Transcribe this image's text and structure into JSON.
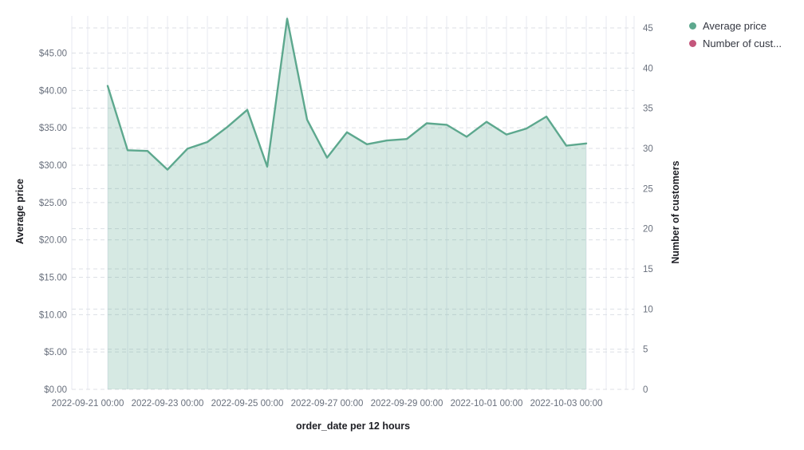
{
  "chart_data": {
    "type": "area",
    "title": "",
    "xlabel": "order_date per 12 hours",
    "ylabel_left": "Average price",
    "ylabel_right": "Number of customers",
    "grid": true,
    "legend_position": "top-right",
    "ylim_left": [
      0,
      50
    ],
    "ylim_right": [
      0,
      46.5
    ],
    "x": [
      "2022-09-21 12:00",
      "2022-09-22 00:00",
      "2022-09-22 12:00",
      "2022-09-23 00:00",
      "2022-09-23 12:00",
      "2022-09-24 00:00",
      "2022-09-24 12:00",
      "2022-09-25 00:00",
      "2022-09-25 12:00",
      "2022-09-26 00:00",
      "2022-09-26 12:00",
      "2022-09-27 00:00",
      "2022-09-27 12:00",
      "2022-09-28 00:00",
      "2022-09-28 12:00",
      "2022-09-29 00:00",
      "2022-09-29 12:00",
      "2022-09-30 00:00",
      "2022-09-30 12:00",
      "2022-10-01 00:00",
      "2022-10-01 12:00",
      "2022-10-02 00:00",
      "2022-10-02 12:00",
      "2022-10-03 00:00",
      "2022-10-03 12:00"
    ],
    "series": [
      {
        "name": "Average price",
        "axis": "left",
        "color": "#5da88e",
        "fill": "rgba(93,168,142,0.25)",
        "values": [
          40.6,
          32.0,
          31.9,
          29.4,
          32.2,
          33.1,
          35.1,
          37.4,
          29.8,
          49.6,
          36.1,
          31.0,
          34.4,
          32.8,
          33.3,
          33.5,
          35.6,
          35.4,
          33.8,
          35.8,
          34.1,
          34.9,
          36.5,
          32.6,
          32.9
        ]
      },
      {
        "name": "Number of cust...",
        "axis": "right",
        "color": "#c4567c",
        "values": []
      }
    ],
    "x_tick_labels": [
      "2022-09-21 00:00",
      "2022-09-23 00:00",
      "2022-09-25 00:00",
      "2022-09-27 00:00",
      "2022-09-29 00:00",
      "2022-10-01 00:00",
      "2022-10-03 00:00"
    ],
    "y_left_ticks": [
      {
        "label": "$0.00",
        "value": 0
      },
      {
        "label": "$5.00",
        "value": 5
      },
      {
        "label": "$10.00",
        "value": 10
      },
      {
        "label": "$15.00",
        "value": 15
      },
      {
        "label": "$20.00",
        "value": 20
      },
      {
        "label": "$25.00",
        "value": 25
      },
      {
        "label": "$30.00",
        "value": 30
      },
      {
        "label": "$35.00",
        "value": 35
      },
      {
        "label": "$40.00",
        "value": 40
      },
      {
        "label": "$45.00",
        "value": 45
      }
    ],
    "y_right_ticks": [
      {
        "label": "0",
        "value": 0
      },
      {
        "label": "5",
        "value": 5
      },
      {
        "label": "10",
        "value": 10
      },
      {
        "label": "15",
        "value": 15
      },
      {
        "label": "20",
        "value": 20
      },
      {
        "label": "25",
        "value": 25
      },
      {
        "label": "30",
        "value": 30
      },
      {
        "label": "35",
        "value": 35
      },
      {
        "label": "40",
        "value": 40
      },
      {
        "label": "45",
        "value": 45
      }
    ]
  },
  "legend": {
    "items": [
      {
        "label": "Average price",
        "color": "#5da88e"
      },
      {
        "label": "Number of cust...",
        "color": "#c4567c"
      }
    ]
  },
  "colors": {
    "line": "#5da88e",
    "area_fill": "rgba(93,168,142,0.25)",
    "series2": "#c4567c",
    "v_grid": "#eef0f4",
    "h_grid": "#dcdfe5",
    "tick_text": "#69707d",
    "title_text": "#1d1e24"
  }
}
